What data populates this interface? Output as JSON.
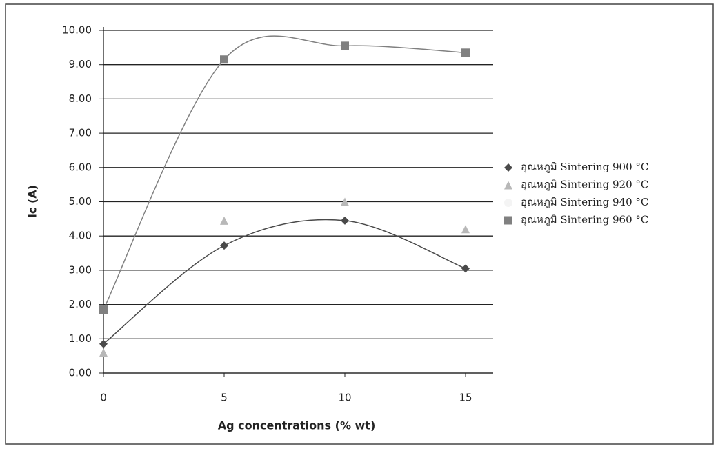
{
  "chart_data": {
    "type": "scatter",
    "x_label": "Ag concentrations (% wt)",
    "y_label": "Ic (A)",
    "x": [
      0,
      5,
      10,
      15
    ],
    "series": [
      {
        "name": "อุณหภูมิ Sintering 900 °C",
        "color": "#4a4a4a",
        "marker": "diamond",
        "smooth": true,
        "values": [
          0.85,
          3.72,
          4.45,
          3.05
        ]
      },
      {
        "name": "อุณหภูมิ Sintering 920 °C",
        "color": "#b8b8b8",
        "marker": "triangle",
        "smooth": false,
        "values": [
          0.6,
          4.45,
          5.0,
          4.2
        ]
      },
      {
        "name": "อุณหภูมิ Sintering 940 °C",
        "color": "#f4f4f4",
        "marker": "circle",
        "smooth": false,
        "values": [
          null,
          null,
          null,
          null
        ]
      },
      {
        "name": "อุณหภูมิ Sintering 960 °C",
        "color": "#808080",
        "marker": "square",
        "smooth": true,
        "values": [
          1.85,
          9.15,
          9.55,
          9.35
        ]
      }
    ],
    "xlim": [
      0,
      16
    ],
    "xticks": [
      0,
      5,
      10,
      15
    ],
    "ylim": [
      0,
      10
    ],
    "yticks": [
      {
        "value": 0,
        "label": "0.00"
      },
      {
        "value": 1,
        "label": "1.00"
      },
      {
        "value": 2,
        "label": "2.00"
      },
      {
        "value": 3,
        "label": "3.00"
      },
      {
        "value": 4,
        "label": "4.00"
      },
      {
        "value": 5,
        "label": "5.00"
      },
      {
        "value": 6,
        "label": "6.00"
      },
      {
        "value": 7,
        "label": "7.00"
      },
      {
        "value": 8,
        "label": "8.00"
      },
      {
        "value": 9,
        "label": "9.00"
      },
      {
        "value": 10,
        "label": "10.00"
      }
    ],
    "grid": true,
    "legend": "right"
  }
}
